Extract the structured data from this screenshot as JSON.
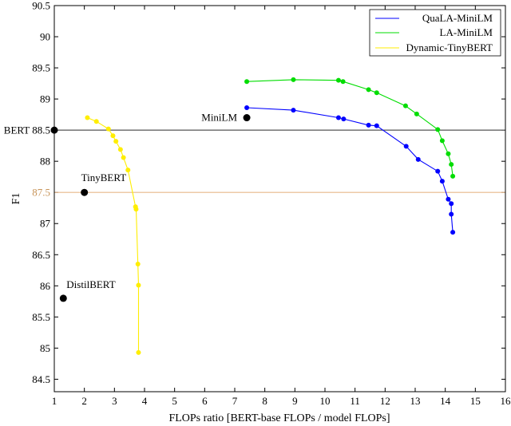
{
  "chart_data": {
    "type": "line",
    "xlabel": "FLOPs ratio [BERT-base FLOPs / model FLOPs]",
    "ylabel": "F1",
    "xlim": [
      1,
      16
    ],
    "ylim": [
      84.3,
      90.5
    ],
    "xticks": [
      1,
      2,
      3,
      4,
      5,
      6,
      7,
      8,
      9,
      10,
      11,
      12,
      13,
      14,
      15,
      16
    ],
    "yticks": [
      84.5,
      85,
      85.5,
      86,
      86.5,
      87,
      87.5,
      88,
      88.5,
      89,
      89.5,
      90,
      90.5
    ],
    "tick_labels_x": [
      "1",
      "2",
      "3",
      "4",
      "5",
      "6",
      "7",
      "8",
      "9",
      "10",
      "11",
      "12",
      "13",
      "14",
      "15",
      "16"
    ],
    "tick_labels_y": [
      "84.5",
      "85",
      "85.5",
      "86",
      "86.5",
      "87",
      "87.5",
      "88",
      "88.5",
      "89",
      "89.5",
      "90",
      "90.5"
    ],
    "grid": false,
    "legend_placement": "top-right",
    "series": [
      {
        "name": "QuaLA-MiniLM",
        "color": "#0000ff",
        "x": [
          7.4,
          8.95,
          10.45,
          10.62,
          11.45,
          11.72,
          12.7,
          13.1,
          13.75,
          13.9,
          14.1,
          14.2,
          14.2,
          14.25
        ],
        "y": [
          88.86,
          88.82,
          88.7,
          88.68,
          88.58,
          88.57,
          88.24,
          88.03,
          87.84,
          87.68,
          87.39,
          87.32,
          87.15,
          86.86
        ]
      },
      {
        "name": "LA-MiniLM",
        "color": "#00dd00",
        "x": [
          7.4,
          8.95,
          10.45,
          10.6,
          11.45,
          11.72,
          12.68,
          13.05,
          13.75,
          13.9,
          14.1,
          14.2,
          14.25
        ],
        "y": [
          89.28,
          89.31,
          89.3,
          89.28,
          89.15,
          89.1,
          88.89,
          88.76,
          88.51,
          88.33,
          88.12,
          87.95,
          87.76
        ]
      },
      {
        "name": "Dynamic-TinyBERT",
        "color": "#ffee00",
        "x": [
          2.1,
          2.4,
          2.8,
          2.95,
          3.05,
          3.2,
          3.3,
          3.45,
          3.7,
          3.72,
          3.78,
          3.8,
          3.8
        ],
        "y": [
          88.7,
          88.64,
          88.52,
          88.41,
          88.32,
          88.19,
          88.06,
          87.86,
          87.27,
          87.23,
          86.35,
          86.01,
          84.93
        ]
      }
    ],
    "reference_lines": [
      {
        "label": "BERT 88.5",
        "y": 88.5,
        "color": "#555555"
      },
      {
        "label": "87.5",
        "y": 87.5,
        "color": "#e8b88a",
        "label_color": "#c8955a"
      }
    ],
    "reference_points": [
      {
        "label": "BERT",
        "x": 1.0,
        "y": 88.5
      },
      {
        "label": "MiniLM",
        "x": 7.4,
        "y": 88.7
      },
      {
        "label": "TinyBERT",
        "x": 2.0,
        "y": 87.5
      },
      {
        "label": "DistilBERT",
        "x": 1.3,
        "y": 85.8
      }
    ]
  }
}
